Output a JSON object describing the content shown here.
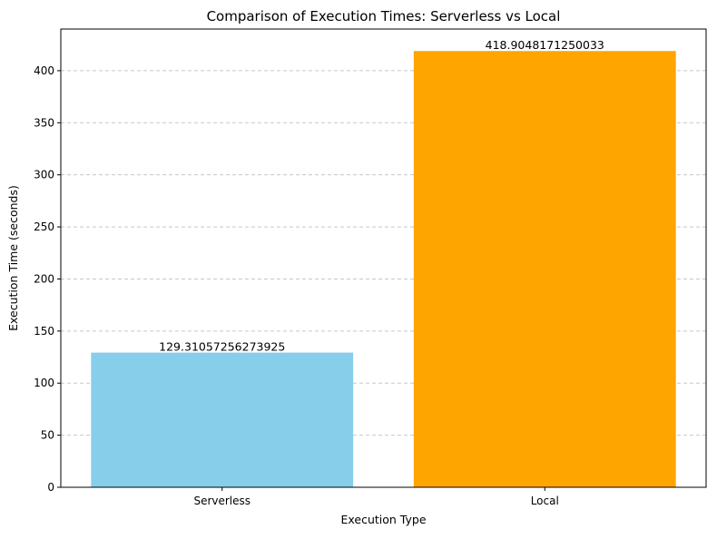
{
  "chart_data": {
    "type": "bar",
    "title": "Comparison of Execution Times: Serverless vs Local",
    "xlabel": "Execution Type",
    "ylabel": "Execution Time (seconds)",
    "categories": [
      "Serverless",
      "Local"
    ],
    "values": [
      129.31057256273925,
      418.9048171250033
    ],
    "value_labels": [
      "129.31057256273925",
      "418.9048171250033"
    ],
    "bar_colors": [
      "#87ceeb",
      "#ffa500"
    ],
    "ylim": [
      0,
      440
    ],
    "yticks": [
      0,
      50,
      100,
      150,
      200,
      250,
      300,
      350,
      400
    ],
    "grid": {
      "axis": "y",
      "style": "dashed",
      "color": "#c8c8c8"
    }
  }
}
